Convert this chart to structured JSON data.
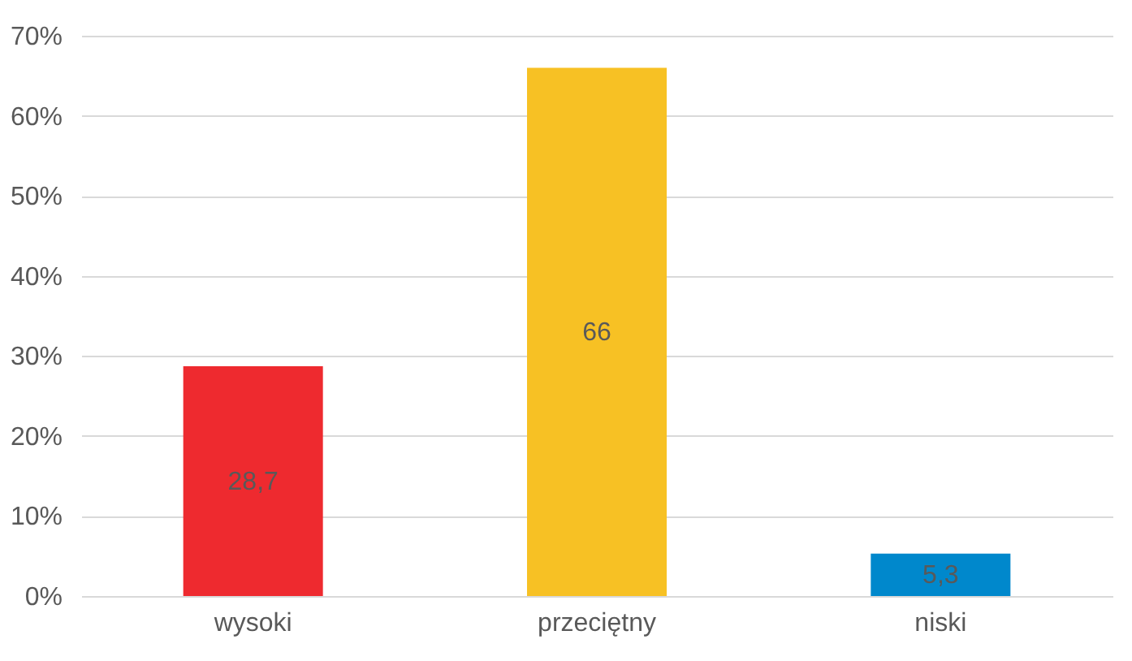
{
  "chart_data": {
    "type": "bar",
    "categories": [
      "wysoki",
      "przeciętny",
      "niski"
    ],
    "values": [
      28.7,
      66,
      5.3
    ],
    "colors": [
      "#ee2a2f",
      "#f7c124",
      "#0088cc"
    ],
    "value_labels": [
      "28,7",
      "66",
      "5,3"
    ],
    "ylim": [
      0,
      70
    ],
    "yticks": [
      {
        "value": 0,
        "label": "0%"
      },
      {
        "value": 10,
        "label": "10%"
      },
      {
        "value": 20,
        "label": "20%"
      },
      {
        "value": 30,
        "label": "30%"
      },
      {
        "value": 40,
        "label": "40%"
      },
      {
        "value": 50,
        "label": "50%"
      },
      {
        "value": 60,
        "label": "60%"
      },
      {
        "value": 70,
        "label": "70%"
      }
    ],
    "grid": true
  }
}
